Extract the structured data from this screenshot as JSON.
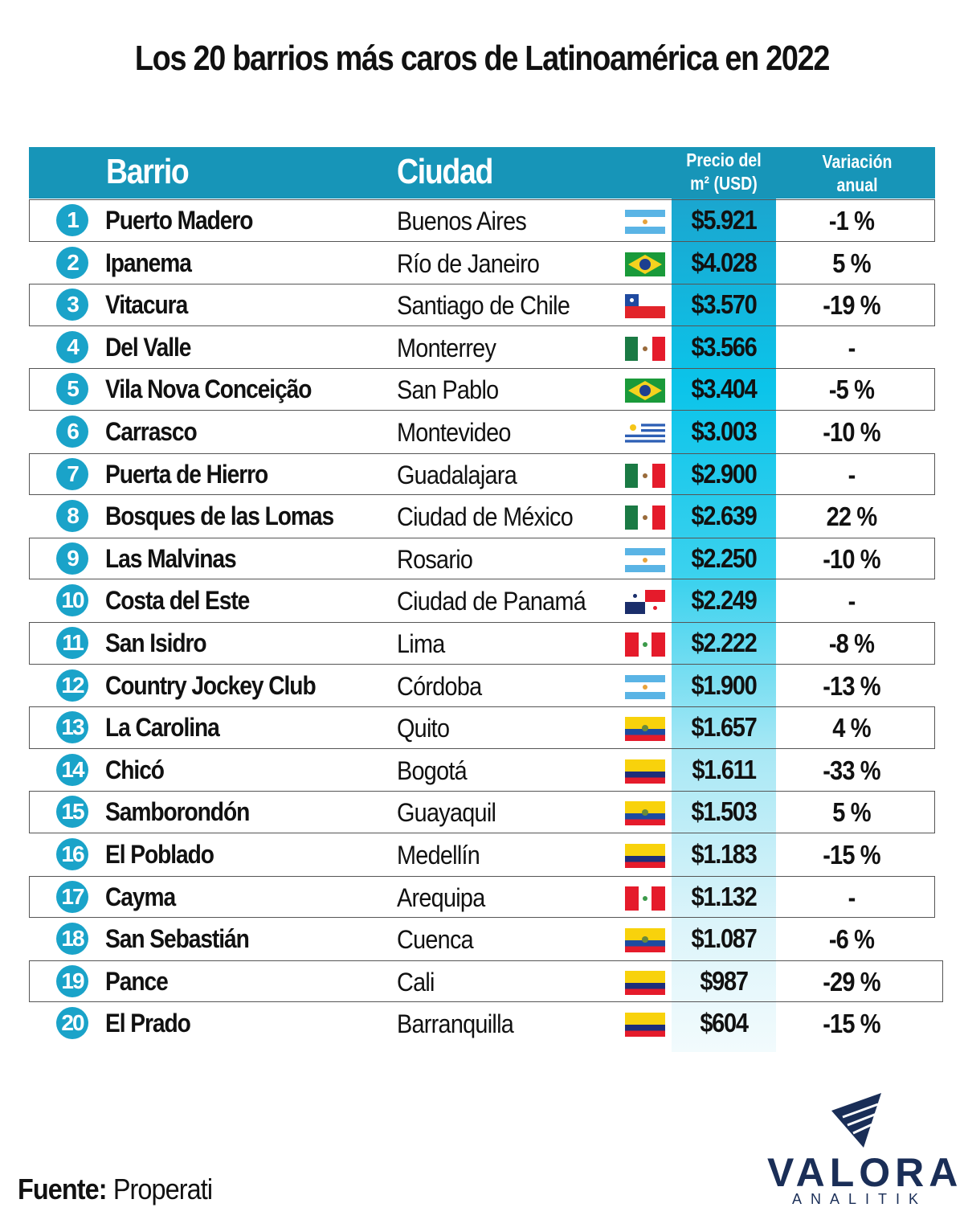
{
  "title": "Los 20 barrios más caros de Latinoamérica en 2022",
  "header": {
    "barrio": "Barrio",
    "ciudad": "Ciudad",
    "precio_line1": "Precio del",
    "precio_line2": "m² (USD)",
    "variacion_line1": "Variación",
    "variacion_line2": "anual"
  },
  "colors": {
    "header_bg": "#1795b8",
    "badge_bg": "#1aa3c9",
    "logo": "#1a2e57"
  },
  "rows": [
    {
      "rank": "1",
      "barrio": "Puerto Madero",
      "ciudad": "Buenos Aires",
      "flag": "argentina-flag",
      "precio": "$5.921",
      "variacion": "-1 %"
    },
    {
      "rank": "2",
      "barrio": "Ipanema",
      "ciudad": "Río de Janeiro",
      "flag": "brazil-flag",
      "precio": "$4.028",
      "variacion": "5 %"
    },
    {
      "rank": "3",
      "barrio": "Vitacura",
      "ciudad": "Santiago de Chile",
      "flag": "chile-flag",
      "precio": "$3.570",
      "variacion": "-19 %"
    },
    {
      "rank": "4",
      "barrio": "Del Valle",
      "ciudad": "Monterrey",
      "flag": "mexico-flag",
      "precio": "$3.566",
      "variacion": "-"
    },
    {
      "rank": "5",
      "barrio": "Vila Nova Conceição",
      "ciudad": "San Pablo",
      "flag": "brazil-flag",
      "precio": "$3.404",
      "variacion": "-5 %"
    },
    {
      "rank": "6",
      "barrio": "Carrasco",
      "ciudad": "Montevideo",
      "flag": "uruguay-flag",
      "precio": "$3.003",
      "variacion": "-10 %"
    },
    {
      "rank": "7",
      "barrio": "Puerta de Hierro",
      "ciudad": "Guadalajara",
      "flag": "mexico-flag",
      "precio": "$2.900",
      "variacion": "-"
    },
    {
      "rank": "8",
      "barrio": "Bosques de las Lomas",
      "ciudad": "Ciudad de México",
      "flag": "mexico-flag",
      "precio": "$2.639",
      "variacion": "22 %"
    },
    {
      "rank": "9",
      "barrio": "Las Malvinas",
      "ciudad": "Rosario",
      "flag": "argentina-flag",
      "precio": "$2.250",
      "variacion": "-10 %"
    },
    {
      "rank": "10",
      "barrio": "Costa del Este",
      "ciudad": "Ciudad de Panamá",
      "flag": "panama-flag",
      "precio": "$2.249",
      "variacion": "-"
    },
    {
      "rank": "11",
      "barrio": "San Isidro",
      "ciudad": "Lima",
      "flag": "peru-flag",
      "precio": "$2.222",
      "variacion": "-8 %"
    },
    {
      "rank": "12",
      "barrio": "Country Jockey Club",
      "ciudad": "Córdoba",
      "flag": "argentina-flag",
      "precio": "$1.900",
      "variacion": "-13 %"
    },
    {
      "rank": "13",
      "barrio": "La Carolina",
      "ciudad": "Quito",
      "flag": "ecuador-flag",
      "precio": "$1.657",
      "variacion": "4 %"
    },
    {
      "rank": "14",
      "barrio": "Chicó",
      "ciudad": "Bogotá",
      "flag": "colombia-flag",
      "precio": "$1.611",
      "variacion": "-33 %"
    },
    {
      "rank": "15",
      "barrio": "Samborondón",
      "ciudad": "Guayaquil",
      "flag": "ecuador-flag",
      "precio": "$1.503",
      "variacion": "5 %"
    },
    {
      "rank": "16",
      "barrio": "El Poblado",
      "ciudad": "Medellín",
      "flag": "colombia-flag",
      "precio": "$1.183",
      "variacion": "-15 %"
    },
    {
      "rank": "17",
      "barrio": "Cayma",
      "ciudad": "Arequipa",
      "flag": "peru-flag",
      "precio": "$1.132",
      "variacion": "-"
    },
    {
      "rank": "18",
      "barrio": "San Sebastián",
      "ciudad": "Cuenca",
      "flag": "ecuador-flag",
      "precio": "$1.087",
      "variacion": "-6 %"
    },
    {
      "rank": "19",
      "barrio": "Pance",
      "ciudad": "Cali",
      "flag": "colombia-flag",
      "precio": "$987",
      "variacion": "-29 %"
    },
    {
      "rank": "20",
      "barrio": "El Prado",
      "ciudad": "Barranquilla",
      "flag": "colombia-flag",
      "precio": "$604",
      "variacion": "-15 %"
    }
  ],
  "source": {
    "label": "Fuente:",
    "value": "Properati"
  },
  "logo": {
    "word": "VALORA",
    "sub": "ANALITIK"
  },
  "chart_data": {
    "type": "table",
    "title": "Los 20 barrios más caros de Latinoamérica en 2022",
    "columns": [
      "#",
      "Barrio",
      "Ciudad",
      "Precio del m² (USD)",
      "Variación anual"
    ],
    "rows": [
      [
        1,
        "Puerto Madero",
        "Buenos Aires",
        5921,
        -1
      ],
      [
        2,
        "Ipanema",
        "Río de Janeiro",
        4028,
        5
      ],
      [
        3,
        "Vitacura",
        "Santiago de Chile",
        3570,
        -19
      ],
      [
        4,
        "Del Valle",
        "Monterrey",
        3566,
        null
      ],
      [
        5,
        "Vila Nova Conceição",
        "San Pablo",
        3404,
        -5
      ],
      [
        6,
        "Carrasco",
        "Montevideo",
        3003,
        -10
      ],
      [
        7,
        "Puerta de Hierro",
        "Guadalajara",
        2900,
        null
      ],
      [
        8,
        "Bosques de las Lomas",
        "Ciudad de México",
        2639,
        22
      ],
      [
        9,
        "Las Malvinas",
        "Rosario",
        2250,
        -10
      ],
      [
        10,
        "Costa del Este",
        "Ciudad de Panamá",
        2249,
        null
      ],
      [
        11,
        "San Isidro",
        "Lima",
        2222,
        -8
      ],
      [
        12,
        "Country Jockey Club",
        "Córdoba",
        1900,
        -13
      ],
      [
        13,
        "La Carolina",
        "Quito",
        1657,
        4
      ],
      [
        14,
        "Chicó",
        "Bogotá",
        1611,
        -33
      ],
      [
        15,
        "Samborondón",
        "Guayaquil",
        1503,
        5
      ],
      [
        16,
        "El Poblado",
        "Medellín",
        1183,
        -15
      ],
      [
        17,
        "Cayma",
        "Arequipa",
        1132,
        null
      ],
      [
        18,
        "San Sebastián",
        "Cuenca",
        1087,
        -6
      ],
      [
        19,
        "Pance",
        "Cali",
        987,
        -29
      ],
      [
        20,
        "El Prado",
        "Barranquilla",
        604,
        -15
      ]
    ],
    "source": "Properati"
  }
}
